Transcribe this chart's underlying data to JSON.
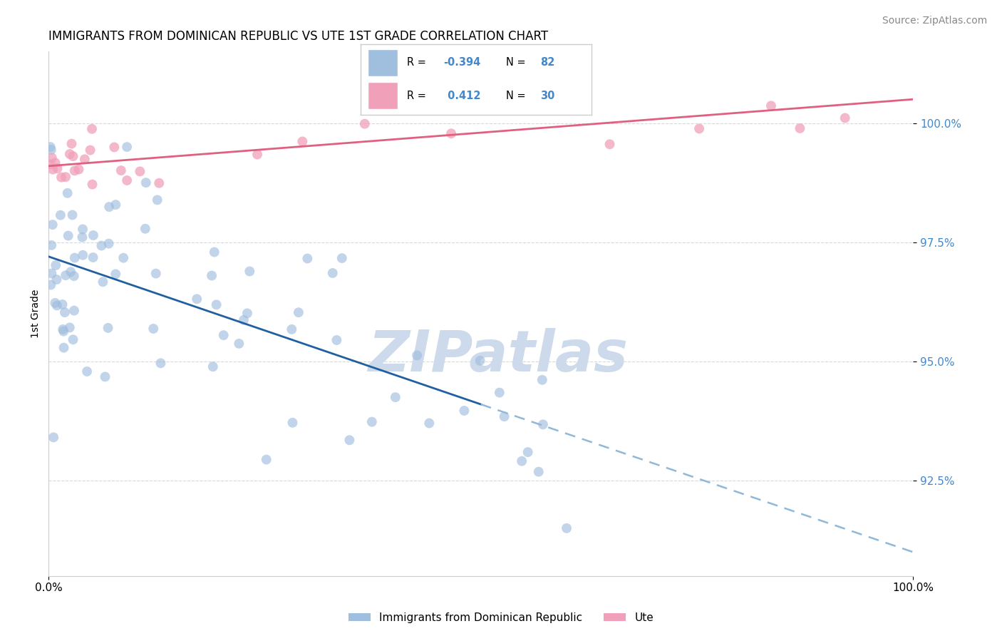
{
  "title": "IMMIGRANTS FROM DOMINICAN REPUBLIC VS UTE 1ST GRADE CORRELATION CHART",
  "source_text": "Source: ZipAtlas.com",
  "ylabel": "1st Grade",
  "x_tick_labels": [
    "0.0%",
    "100.0%"
  ],
  "y_tick_values": [
    92.5,
    95.0,
    97.5,
    100.0
  ],
  "x_lim": [
    0.0,
    100.0
  ],
  "y_lim": [
    90.5,
    101.5
  ],
  "blue_color": "#a0bede",
  "pink_color": "#f0a0b8",
  "blue_line_color": "#2060a0",
  "pink_line_color": "#e06080",
  "dashed_line_color": "#90b8d8",
  "watermark_color": "#ccdaeb",
  "blue_R": -0.394,
  "blue_N": 82,
  "pink_R": 0.412,
  "pink_N": 30,
  "blue_line_x0": 0,
  "blue_line_y0": 97.2,
  "blue_line_x1": 100,
  "blue_line_y1": 91.0,
  "blue_solid_end_x": 50,
  "pink_line_x0": 0,
  "pink_line_y0": 99.1,
  "pink_line_x1": 100,
  "pink_line_y1": 100.5,
  "legend_R_blue": "-0.394",
  "legend_N_blue": "82",
  "legend_R_pink": "0.412",
  "legend_N_pink": "30",
  "tick_color": "#4488cc",
  "grid_color": "#d8d8d8",
  "title_fontsize": 12,
  "source_fontsize": 10,
  "tick_fontsize": 11,
  "ylabel_fontsize": 10
}
